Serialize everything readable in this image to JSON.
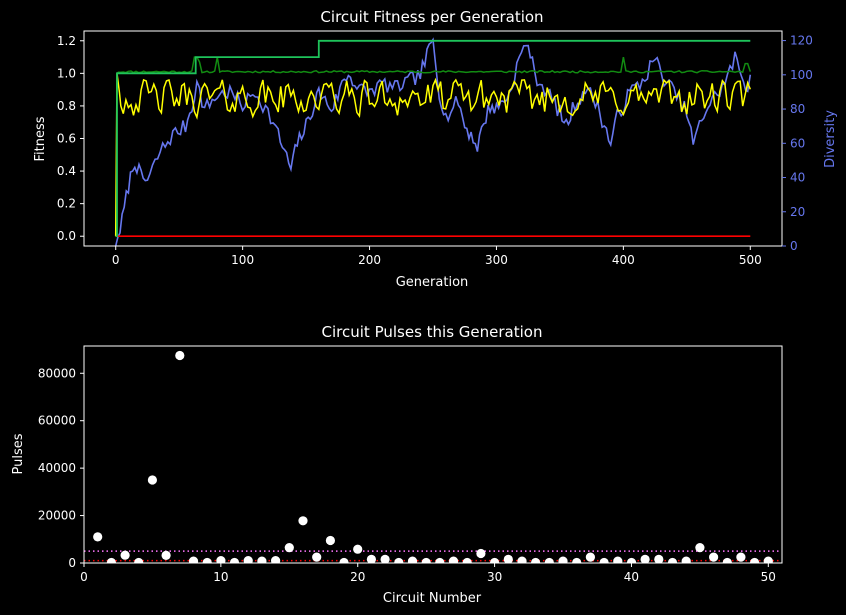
{
  "chart_data": [
    {
      "type": "line",
      "title": "Circuit Fitness per Generation",
      "xlabel": "Generation",
      "ylabel": "Fitness",
      "y2label": "Diversity",
      "xlim": [
        -25,
        525
      ],
      "ylim": [
        -0.06,
        1.26
      ],
      "y2lim": [
        0,
        125.6
      ],
      "xticks": [
        0,
        100,
        200,
        300,
        400,
        500
      ],
      "yticks": [
        0.0,
        0.2,
        0.4,
        0.6,
        0.8,
        1.0,
        1.2
      ],
      "y2ticks": [
        0,
        20,
        40,
        60,
        80,
        100,
        120
      ],
      "grid": false,
      "colors": {
        "best": "#1ec35a",
        "mean_high": "#128c12",
        "mean": "#ffff00",
        "low": "#ff0000",
        "diversity": "#6677ee"
      },
      "series": [
        {
          "color": "#1ec35a",
          "steps": [
            [
              0,
              0.0
            ],
            [
              1,
              1.0
            ],
            [
              63,
              1.1
            ],
            [
              160,
              1.2
            ],
            [
              500,
              1.2
            ]
          ]
        },
        {
          "color": "#128c12",
          "base": 1.01,
          "spikes": [
            [
              63,
              1.1
            ],
            [
              66,
              1.07
            ],
            [
              80,
              1.1
            ],
            [
              400,
              1.1
            ],
            [
              497,
              1.06
            ]
          ],
          "x_end": 500
        },
        {
          "color": "#ffff00",
          "start": [
            [
              0,
              0.0
            ],
            [
              1,
              1.0
            ],
            [
              3,
              0.88
            ]
          ],
          "range": [
            0.73,
            0.96
          ],
          "mean": 0.85,
          "x_end": 500
        },
        {
          "color": "#ff0000",
          "points": [
            [
              0,
              0.0
            ],
            [
              500,
              0.0
            ]
          ]
        },
        {
          "color": "#6677ee",
          "axis": "right",
          "points": [
            [
              0,
              0
            ],
            [
              5,
              15
            ],
            [
              10,
              35
            ],
            [
              15,
              50
            ],
            [
              20,
              40
            ],
            [
              25,
              38
            ],
            [
              35,
              55
            ],
            [
              45,
              65
            ],
            [
              55,
              70
            ],
            [
              60,
              82
            ],
            [
              64,
              95
            ],
            [
              70,
              80
            ],
            [
              80,
              88
            ],
            [
              90,
              90
            ],
            [
              100,
              82
            ],
            [
              110,
              90
            ],
            [
              120,
              78
            ],
            [
              128,
              65
            ],
            [
              133,
              55
            ],
            [
              138,
              45
            ],
            [
              143,
              60
            ],
            [
              150,
              70
            ],
            [
              155,
              80
            ],
            [
              160,
              90
            ],
            [
              165,
              85
            ],
            [
              170,
              80
            ],
            [
              175,
              88
            ],
            [
              180,
              98
            ],
            [
              185,
              100
            ],
            [
              190,
              92
            ],
            [
              200,
              90
            ],
            [
              210,
              95
            ],
            [
              220,
              92
            ],
            [
              230,
              96
            ],
            [
              240,
              100
            ],
            [
              247,
              115
            ],
            [
              250,
              120
            ],
            [
              255,
              90
            ],
            [
              260,
              75
            ],
            [
              270,
              85
            ],
            [
              275,
              70
            ],
            [
              280,
              65
            ],
            [
              285,
              58
            ],
            [
              290,
              72
            ],
            [
              295,
              82
            ],
            [
              300,
              80
            ],
            [
              305,
              85
            ],
            [
              310,
              88
            ],
            [
              318,
              110
            ],
            [
              325,
              119
            ],
            [
              330,
              100
            ],
            [
              340,
              90
            ],
            [
              350,
              78
            ],
            [
              355,
              70
            ],
            [
              360,
              80
            ],
            [
              370,
              92
            ],
            [
              378,
              85
            ],
            [
              385,
              70
            ],
            [
              390,
              60
            ],
            [
              395,
              75
            ],
            [
              400,
              82
            ],
            [
              405,
              90
            ],
            [
              415,
              96
            ],
            [
              425,
              110
            ],
            [
              430,
              100
            ],
            [
              440,
              90
            ],
            [
              450,
              78
            ],
            [
              455,
              60
            ],
            [
              460,
              70
            ],
            [
              465,
              80
            ],
            [
              470,
              85
            ],
            [
              480,
              95
            ],
            [
              488,
              110
            ],
            [
              493,
              100
            ],
            [
              498,
              92
            ],
            [
              500,
              100
            ]
          ]
        }
      ]
    },
    {
      "type": "scatter",
      "title": "Circuit Pulses this Generation",
      "xlabel": "Circuit Number",
      "ylabel": "Pulses",
      "xlim": [
        0,
        51
      ],
      "ylim": [
        0,
        91500
      ],
      "xticks": [
        0,
        10,
        20,
        30,
        40,
        50
      ],
      "yticks": [
        0,
        20000,
        40000,
        60000,
        80000
      ],
      "ytick_labels": [
        "0",
        "20000",
        "40000",
        "60000",
        "80000"
      ],
      "grid": false,
      "colors": {
        "points": "#ffffff",
        "hline_upper": "#ff77ff",
        "hline_lower": "#ff0000"
      },
      "hlines": [
        {
          "y": 5000,
          "color": "#ff77ff",
          "style": "dotted"
        },
        {
          "y": 1000,
          "color": "#ff0000",
          "style": "dotted"
        }
      ],
      "x": [
        1,
        2,
        3,
        4,
        5,
        6,
        7,
        8,
        9,
        10,
        11,
        12,
        13,
        14,
        15,
        16,
        17,
        18,
        19,
        20,
        21,
        22,
        23,
        24,
        25,
        26,
        27,
        28,
        29,
        30,
        31,
        32,
        33,
        34,
        35,
        36,
        37,
        38,
        39,
        40,
        41,
        42,
        43,
        44,
        45,
        46,
        47,
        48,
        49,
        50
      ],
      "y": [
        11000,
        200,
        3300,
        200,
        35000,
        3200,
        87500,
        800,
        200,
        1000,
        200,
        1000,
        800,
        1000,
        6500,
        17800,
        2500,
        9500,
        200,
        5800,
        1500,
        1500,
        200,
        800,
        200,
        200,
        800,
        200,
        4000,
        200,
        1500,
        800,
        200,
        200,
        800,
        200,
        2500,
        200,
        800,
        200,
        1500,
        1500,
        200,
        800,
        6500,
        2500,
        200,
        2500,
        200,
        800
      ]
    }
  ]
}
